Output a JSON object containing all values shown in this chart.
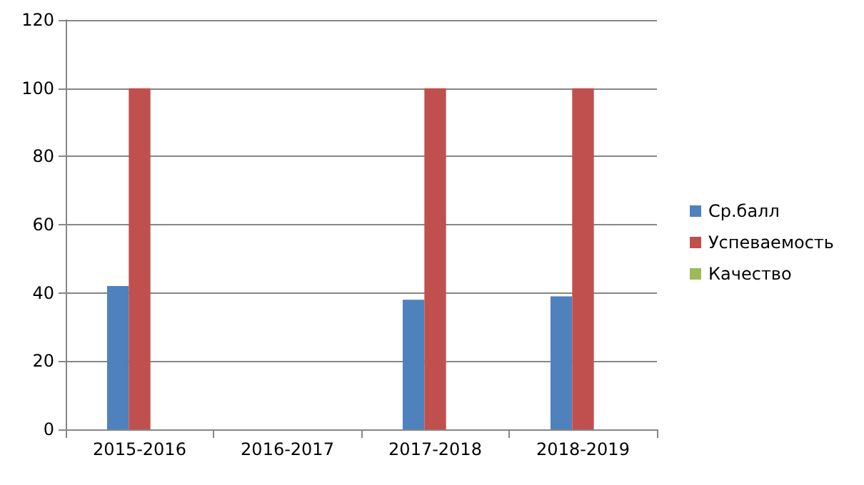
{
  "chart_data": {
    "type": "bar",
    "categories": [
      "2015-2016",
      "2016-2017",
      "2017-2018",
      "2018-2019"
    ],
    "series": [
      {
        "name": "Ср.балл",
        "color": "#4f81bd",
        "values": [
          42,
          0,
          38,
          39
        ]
      },
      {
        "name": "Успеваемость",
        "color": "#c0504d",
        "values": [
          100,
          0,
          100,
          100
        ]
      },
      {
        "name": "Качество",
        "color": "#9bbb59",
        "values": [
          0,
          0,
          0,
          0
        ]
      }
    ],
    "ylim": [
      0,
      120
    ],
    "yticks": [
      0,
      20,
      40,
      60,
      80,
      100,
      120
    ],
    "grid": "y",
    "legend": "right"
  }
}
